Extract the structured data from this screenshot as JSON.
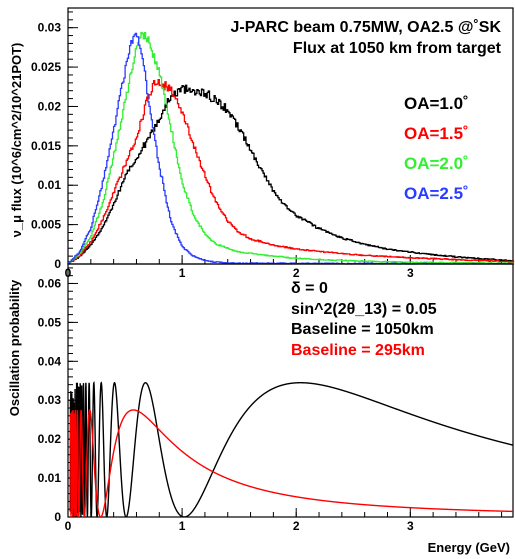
{
  "header": {
    "line1": "J-PARC beam 0.75MW, OA2.5 @˚SK",
    "line2": "Flux at 1050 km from target"
  },
  "colors": {
    "black": "#000000",
    "red": "#ff0000",
    "green": "#33ee33",
    "blue": "#2a3cff"
  },
  "chart_data": [
    {
      "type": "line",
      "ylabel": "ν_μ flux (10^6/cm^2/10^21POT)",
      "xlim": [
        0,
        3.9
      ],
      "ylim": [
        0,
        0.0325
      ],
      "xticks": [
        {
          "value": 0,
          "label": "0"
        },
        {
          "value": 1,
          "label": "1"
        },
        {
          "value": 2,
          "label": "2"
        },
        {
          "value": 3,
          "label": "3"
        }
      ],
      "yticks": [
        {
          "value": 0,
          "label": "0"
        },
        {
          "value": 0.005,
          "label": "0.005"
        },
        {
          "value": 0.01,
          "label": "0.01"
        },
        {
          "value": 0.015,
          "label": "0.015"
        },
        {
          "value": 0.02,
          "label": "0.02"
        },
        {
          "value": 0.025,
          "label": "0.025"
        },
        {
          "value": 0.03,
          "label": "0.03"
        }
      ],
      "legend_position": "right",
      "series": [
        {
          "name": "OA=1.0˚",
          "color": "#000000",
          "points": [
            [
              0,
              0
            ],
            [
              0.1,
              0.0009
            ],
            [
              0.2,
              0.0024
            ],
            [
              0.3,
              0.0045
            ],
            [
              0.4,
              0.0075
            ],
            [
              0.5,
              0.011
            ],
            [
              0.6,
              0.0135
            ],
            [
              0.7,
              0.0158
            ],
            [
              0.8,
              0.0185
            ],
            [
              0.9,
              0.0212
            ],
            [
              1.0,
              0.0222
            ],
            [
              1.1,
              0.022
            ],
            [
              1.2,
              0.0217
            ],
            [
              1.3,
              0.0208
            ],
            [
              1.4,
              0.0195
            ],
            [
              1.5,
              0.0173
            ],
            [
              1.6,
              0.0145
            ],
            [
              1.7,
              0.0118
            ],
            [
              1.8,
              0.0093
            ],
            [
              1.9,
              0.0075
            ],
            [
              2.0,
              0.0062
            ],
            [
              2.2,
              0.0045
            ],
            [
              2.4,
              0.0033
            ],
            [
              2.6,
              0.0025
            ],
            [
              2.8,
              0.0019
            ],
            [
              3.0,
              0.0015
            ],
            [
              3.2,
              0.0012
            ],
            [
              3.4,
              0.0009
            ],
            [
              3.6,
              0.0007
            ],
            [
              3.8,
              0.0005
            ],
            [
              3.9,
              0.0004
            ]
          ]
        },
        {
          "name": "OA=1.5˚",
          "color": "#ff0000",
          "points": [
            [
              0,
              0
            ],
            [
              0.1,
              0.001
            ],
            [
              0.2,
              0.0028
            ],
            [
              0.3,
              0.0055
            ],
            [
              0.4,
              0.009
            ],
            [
              0.5,
              0.0125
            ],
            [
              0.6,
              0.016
            ],
            [
              0.7,
              0.021
            ],
            [
              0.75,
              0.0228
            ],
            [
              0.8,
              0.023
            ],
            [
              0.9,
              0.0222
            ],
            [
              1.0,
              0.0195
            ],
            [
              1.1,
              0.0152
            ],
            [
              1.2,
              0.0112
            ],
            [
              1.3,
              0.0078
            ],
            [
              1.4,
              0.0055
            ],
            [
              1.5,
              0.004
            ],
            [
              1.6,
              0.0032
            ],
            [
              1.8,
              0.0024
            ],
            [
              2.0,
              0.0019
            ],
            [
              2.5,
              0.0012
            ],
            [
              3.0,
              0.0008
            ],
            [
              3.5,
              0.0005
            ],
            [
              3.9,
              0.0003
            ]
          ]
        },
        {
          "name": "OA=2.0˚",
          "color": "#33ee33",
          "points": [
            [
              0,
              0
            ],
            [
              0.1,
              0.0012
            ],
            [
              0.2,
              0.0035
            ],
            [
              0.3,
              0.0075
            ],
            [
              0.4,
              0.0135
            ],
            [
              0.5,
              0.0205
            ],
            [
              0.6,
              0.0275
            ],
            [
              0.65,
              0.029
            ],
            [
              0.7,
              0.0285
            ],
            [
              0.8,
              0.0245
            ],
            [
              0.9,
              0.0175
            ],
            [
              1.0,
              0.0105
            ],
            [
              1.1,
              0.0062
            ],
            [
              1.2,
              0.0038
            ],
            [
              1.3,
              0.0025
            ],
            [
              1.5,
              0.0015
            ],
            [
              2.0,
              0.0007
            ],
            [
              2.5,
              0.0004
            ],
            [
              3.0,
              0.0002
            ],
            [
              3.9,
              0.0001
            ]
          ]
        },
        {
          "name": "OA=2.5˚",
          "color": "#2a3cff",
          "points": [
            [
              0,
              0
            ],
            [
              0.1,
              0.0015
            ],
            [
              0.2,
              0.0045
            ],
            [
              0.3,
              0.01
            ],
            [
              0.4,
              0.017
            ],
            [
              0.5,
              0.0245
            ],
            [
              0.58,
              0.0293
            ],
            [
              0.65,
              0.027
            ],
            [
              0.7,
              0.021
            ],
            [
              0.8,
              0.0125
            ],
            [
              0.9,
              0.0055
            ],
            [
              1.0,
              0.0022
            ],
            [
              1.1,
              0.001
            ],
            [
              1.2,
              0.0004
            ],
            [
              1.4,
              0.0001
            ],
            [
              3.9,
              0
            ]
          ]
        }
      ]
    },
    {
      "type": "line",
      "xlabel": "Energy (GeV)",
      "ylabel": "Oscillation probability",
      "xlim": [
        0,
        3.9
      ],
      "ylim": [
        0,
        0.065
      ],
      "xticks": [
        {
          "value": 0,
          "label": "0"
        },
        {
          "value": 1,
          "label": "1"
        },
        {
          "value": 2,
          "label": "2"
        },
        {
          "value": 3,
          "label": "3"
        }
      ],
      "yticks": [
        {
          "value": 0,
          "label": "0"
        },
        {
          "value": 0.01,
          "label": "0.01"
        },
        {
          "value": 0.02,
          "label": "0.02"
        },
        {
          "value": 0.03,
          "label": "0.03"
        },
        {
          "value": 0.04,
          "label": "0.04"
        },
        {
          "value": 0.05,
          "label": "0.05"
        },
        {
          "value": 0.06,
          "label": "0.06"
        }
      ],
      "annotations": {
        "delta": "δ = 0",
        "theta": "sin^2(2θ_13) = 0.05",
        "baseline_1050": "Baseline = 1050km",
        "baseline_295": "Baseline = 295km"
      },
      "series": [
        {
          "name": "Baseline = 1050km",
          "color": "#000000",
          "baseline_km": 1050,
          "amplitude": 0.0345
        },
        {
          "name": "Baseline = 295km",
          "color": "#ff0000",
          "baseline_km": 295,
          "amplitude": 0.0275
        }
      ]
    }
  ]
}
